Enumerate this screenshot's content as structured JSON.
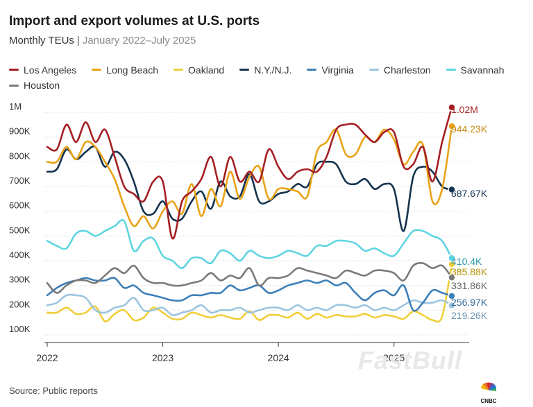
{
  "header": {
    "title": "Import and export volumes at U.S. ports",
    "subtitle_main": "Monthly TEUs",
    "subtitle_sep": "|",
    "subtitle_range": "January 2022–July 2025"
  },
  "source": "Source: Public reports",
  "watermark": "FastBull",
  "logo_text": "CNBC",
  "chart_data": {
    "type": "line",
    "y_ticks": [
      {
        "v": 1000000,
        "label": "1M"
      },
      {
        "v": 900000,
        "label": "900K"
      },
      {
        "v": 800000,
        "label": "800K"
      },
      {
        "v": 700000,
        "label": "700K"
      },
      {
        "v": 600000,
        "label": "600K"
      },
      {
        "v": 500000,
        "label": "500K"
      },
      {
        "v": 400000,
        "label": "400K"
      },
      {
        "v": 300000,
        "label": "300K"
      },
      {
        "v": 200000,
        "label": "200K"
      },
      {
        "v": 100000,
        "label": "100K"
      }
    ],
    "x_ticks": [
      {
        "v": "2022-01",
        "label": "2022"
      },
      {
        "v": "2023-01",
        "label": "2023"
      },
      {
        "v": "2024-01",
        "label": "2024"
      },
      {
        "v": "2025-01",
        "label": "2025"
      }
    ],
    "x_start": "2022-01",
    "ylim": [
      100000,
      1000000
    ],
    "grid": "horizontal",
    "legend_placement": "top",
    "series": [
      {
        "name": "Los Angeles",
        "color": "#a51e22",
        "end_label": "1.02M",
        "values": [
          860000,
          850000,
          950000,
          880000,
          960000,
          880000,
          930000,
          820000,
          700000,
          670000,
          640000,
          720000,
          720000,
          490000,
          640000,
          680000,
          730000,
          820000,
          700000,
          820000,
          720000,
          760000,
          720000,
          850000,
          780000,
          730000,
          760000,
          770000,
          760000,
          820000,
          930000,
          950000,
          950000,
          910000,
          880000,
          920000,
          920000,
          780000,
          790000,
          860000,
          720000,
          880000,
          1020000
        ]
      },
      {
        "name": "Long Beach",
        "color": "#e8a317",
        "end_label": "944.23K",
        "values": [
          800000,
          800000,
          860000,
          810000,
          880000,
          860000,
          800000,
          730000,
          620000,
          540000,
          580000,
          530000,
          600000,
          640000,
          590000,
          710000,
          580000,
          690000,
          620000,
          760000,
          650000,
          740000,
          780000,
          650000,
          690000,
          690000,
          680000,
          660000,
          840000,
          880000,
          930000,
          830000,
          830000,
          900000,
          880000,
          930000,
          890000,
          790000,
          840000,
          870000,
          640000,
          690000,
          944230
        ]
      },
      {
        "name": "Oakland",
        "color": "#f0ce3a",
        "end_label": "385.88K",
        "values": [
          190000,
          190000,
          210000,
          185000,
          190000,
          215000,
          155000,
          185000,
          200000,
          160000,
          170000,
          210000,
          190000,
          165000,
          165000,
          190000,
          180000,
          170000,
          180000,
          170000,
          165000,
          195000,
          160000,
          180000,
          180000,
          170000,
          190000,
          165000,
          185000,
          170000,
          180000,
          175000,
          175000,
          185000,
          170000,
          180000,
          175000,
          165000,
          195000,
          180000,
          160000,
          175000,
          385880
        ]
      },
      {
        "name": "N.Y./N.J.",
        "color": "#14334f",
        "end_label": "687.67K",
        "values": [
          760000,
          770000,
          850000,
          810000,
          840000,
          860000,
          780000,
          840000,
          810000,
          720000,
          600000,
          590000,
          640000,
          570000,
          570000,
          640000,
          680000,
          610000,
          720000,
          660000,
          660000,
          750000,
          640000,
          640000,
          670000,
          680000,
          710000,
          700000,
          790000,
          800000,
          790000,
          720000,
          710000,
          730000,
          690000,
          710000,
          690000,
          520000,
          740000,
          780000,
          760000,
          700000,
          687670
        ]
      },
      {
        "name": "Virginia",
        "color": "#3d7fb8",
        "end_label": "256.97K",
        "values": [
          260000,
          290000,
          310000,
          320000,
          330000,
          320000,
          320000,
          330000,
          290000,
          300000,
          270000,
          260000,
          250000,
          240000,
          240000,
          260000,
          260000,
          270000,
          270000,
          300000,
          280000,
          290000,
          300000,
          270000,
          280000,
          300000,
          310000,
          320000,
          310000,
          320000,
          300000,
          310000,
          270000,
          240000,
          270000,
          280000,
          260000,
          300000,
          200000,
          230000,
          280000,
          270000,
          256970
        ]
      },
      {
        "name": "Charleston",
        "color": "#9cc5e0",
        "end_label": "219.26K",
        "values": [
          220000,
          230000,
          260000,
          260000,
          250000,
          200000,
          190000,
          210000,
          220000,
          250000,
          200000,
          200000,
          210000,
          180000,
          190000,
          200000,
          220000,
          190000,
          200000,
          200000,
          210000,
          190000,
          200000,
          210000,
          210000,
          200000,
          220000,
          200000,
          210000,
          200000,
          220000,
          220000,
          210000,
          220000,
          200000,
          210000,
          200000,
          220000,
          240000,
          230000,
          230000,
          240000,
          219260
        ]
      },
      {
        "name": "Savannah",
        "color": "#5fd5e2",
        "end_label": "410.4K",
        "values": [
          480000,
          460000,
          450000,
          510000,
          520000,
          500000,
          520000,
          540000,
          560000,
          440000,
          480000,
          490000,
          420000,
          400000,
          370000,
          410000,
          410000,
          390000,
          440000,
          430000,
          400000,
          440000,
          420000,
          410000,
          420000,
          440000,
          430000,
          420000,
          460000,
          460000,
          480000,
          480000,
          470000,
          440000,
          450000,
          430000,
          420000,
          470000,
          520000,
          520000,
          500000,
          480000,
          410400
        ]
      },
      {
        "name": "Houston",
        "color": "#7a7a7a",
        "end_label": "331.86K",
        "values": [
          310000,
          270000,
          300000,
          320000,
          320000,
          310000,
          340000,
          370000,
          350000,
          380000,
          330000,
          310000,
          310000,
          300000,
          300000,
          310000,
          320000,
          350000,
          320000,
          340000,
          330000,
          370000,
          300000,
          330000,
          330000,
          340000,
          370000,
          360000,
          350000,
          340000,
          330000,
          360000,
          350000,
          340000,
          360000,
          360000,
          350000,
          320000,
          380000,
          390000,
          370000,
          380000,
          331860
        ]
      }
    ]
  }
}
